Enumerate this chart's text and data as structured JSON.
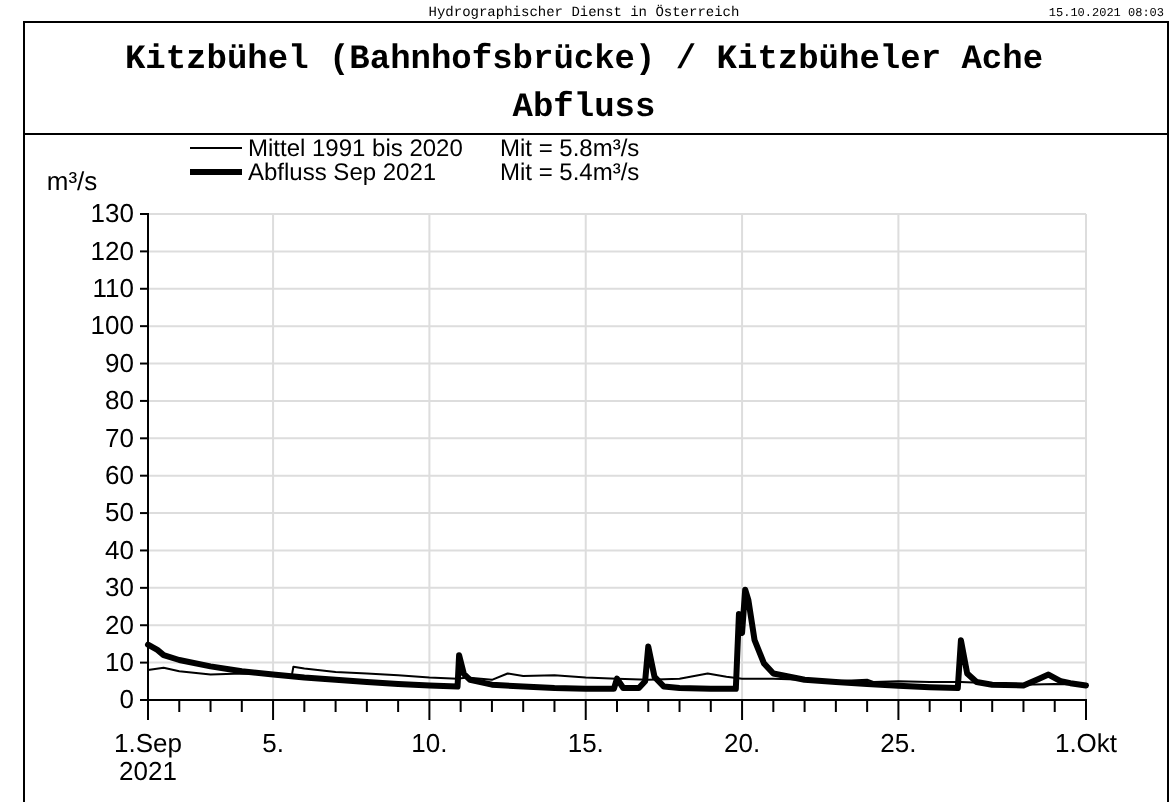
{
  "chart_data": {
    "type": "line",
    "title": "Kitzbühel (Bahnhofsbrücke) / Kitzbüheler Ache",
    "subtitle": "Abfluss",
    "ylabel": "m³/s",
    "annotations": [
      "Hydrographischer Dienst in Österreich",
      "15.10.2021 08:03",
      "Mit =  5.8m³/s",
      "Mit =  5.4m³/s"
    ],
    "xlim": [
      "2021-09-01",
      "2021-10-01"
    ],
    "ylim": [
      0,
      130
    ],
    "xticks": [
      {
        "value": "2021-09-01",
        "label": "1.Sep\n2021"
      },
      {
        "value": "2021-09-02",
        "label": null
      },
      {
        "value": "2021-09-03",
        "label": null
      },
      {
        "value": "2021-09-04",
        "label": null
      },
      {
        "value": "2021-09-05",
        "label": "5."
      },
      {
        "value": "2021-09-06",
        "label": null
      },
      {
        "value": "2021-09-07",
        "label": null
      },
      {
        "value": "2021-09-08",
        "label": null
      },
      {
        "value": "2021-09-09",
        "label": null
      },
      {
        "value": "2021-09-10",
        "label": "10."
      },
      {
        "value": "2021-09-11",
        "label": null
      },
      {
        "value": "2021-09-12",
        "label": null
      },
      {
        "value": "2021-09-13",
        "label": null
      },
      {
        "value": "2021-09-14",
        "label": null
      },
      {
        "value": "2021-09-15",
        "label": "15."
      },
      {
        "value": "2021-09-16",
        "label": null
      },
      {
        "value": "2021-09-17",
        "label": null
      },
      {
        "value": "2021-09-18",
        "label": null
      },
      {
        "value": "2021-09-19",
        "label": null
      },
      {
        "value": "2021-09-20",
        "label": "20."
      },
      {
        "value": "2021-09-21",
        "label": null
      },
      {
        "value": "2021-09-22",
        "label": null
      },
      {
        "value": "2021-09-23",
        "label": null
      },
      {
        "value": "2021-09-24",
        "label": null
      },
      {
        "value": "2021-09-25",
        "label": "25."
      },
      {
        "value": "2021-09-26",
        "label": null
      },
      {
        "value": "2021-09-27",
        "label": null
      },
      {
        "value": "2021-09-28",
        "label": null
      },
      {
        "value": "2021-09-29",
        "label": null
      },
      {
        "value": "2021-09-30",
        "label": null
      },
      {
        "value": "2021-10-01",
        "label": "1.Okt"
      }
    ],
    "yticks": [
      0,
      10,
      20,
      30,
      40,
      50,
      60,
      70,
      80,
      90,
      100,
      110,
      120,
      130
    ],
    "grid": true,
    "legend": "top left",
    "marker": "none",
    "line_style": "solid",
    "series": [
      {
        "name": "Mittel 1991 bis 2020",
        "color": "#000000",
        "x": [
          "2021-09-01",
          "2021-09-01T12:00",
          "2021-09-02",
          "2021-09-03",
          "2021-09-04",
          "2021-09-05",
          "2021-09-05T14:24",
          "2021-09-05T15:36",
          "2021-09-06",
          "2021-09-07",
          "2021-09-08",
          "2021-09-09",
          "2021-09-10",
          "2021-09-10T21:36",
          "2021-09-11T04:48",
          "2021-09-12",
          "2021-09-12T12:00",
          "2021-09-13",
          "2021-09-14",
          "2021-09-15",
          "2021-09-16",
          "2021-09-17",
          "2021-09-18",
          "2021-09-18T21:36",
          "2021-09-19T12:00",
          "2021-09-20",
          "2021-09-21",
          "2021-09-22",
          "2021-09-23",
          "2021-09-24",
          "2021-09-24T04:48",
          "2021-09-25",
          "2021-09-26",
          "2021-09-27",
          "2021-09-28",
          "2021-09-29",
          "2021-09-30",
          "2021-10-01"
        ],
        "values": [
          8,
          8.6,
          7.7,
          6.8,
          7.1,
          6.8,
          6.6,
          8.9,
          8.4,
          7.5,
          7.1,
          6.6,
          6,
          5.7,
          6,
          5.4,
          7.1,
          6.4,
          6.6,
          6,
          5.7,
          5.4,
          5.7,
          7.1,
          6.2,
          5.7,
          5.7,
          5.4,
          5,
          5.4,
          4.8,
          5,
          4.8,
          4.8,
          4.5,
          4.1,
          4.3,
          4.1
        ]
      },
      {
        "name": "Abfluss Sep 2021",
        "color": "#000000",
        "x": [
          "2021-09-01",
          "2021-09-01T07:12",
          "2021-09-01T12:00",
          "2021-09-02",
          "2021-09-03",
          "2021-09-04",
          "2021-09-05",
          "2021-09-06",
          "2021-09-07",
          "2021-09-08",
          "2021-09-09",
          "2021-09-10",
          "2021-09-10T21:36",
          "2021-09-10T22:48",
          "2021-09-11T02:24",
          "2021-09-11T07:12",
          "2021-09-12",
          "2021-09-13",
          "2021-09-14",
          "2021-09-15",
          "2021-09-15T21:36",
          "2021-09-16",
          "2021-09-16T04:48",
          "2021-09-16T16:48",
          "2021-09-16T21:36",
          "2021-09-17",
          "2021-09-17T04:48",
          "2021-09-17T12:00",
          "2021-09-18",
          "2021-09-19",
          "2021-09-19T19:12",
          "2021-09-19T21:36",
          "2021-09-20",
          "2021-09-20T02:24",
          "2021-09-20T04:48",
          "2021-09-20T09:36",
          "2021-09-20T16:48",
          "2021-09-21",
          "2021-09-22",
          "2021-09-23",
          "2021-09-24",
          "2021-09-25",
          "2021-09-26",
          "2021-09-26T21:36",
          "2021-09-27",
          "2021-09-27T04:48",
          "2021-09-27T12:00",
          "2021-09-28",
          "2021-09-29",
          "2021-09-29T12:00",
          "2021-09-29T19:12",
          "2021-09-30T04:48",
          "2021-09-30T12:00",
          "2021-10-01"
        ],
        "values": [
          14.8,
          13.4,
          12,
          10.7,
          9,
          7.7,
          6.8,
          6,
          5.4,
          4.8,
          4.3,
          3.9,
          3.6,
          12,
          7,
          5.4,
          4.1,
          3.6,
          3.2,
          3,
          3,
          5.7,
          3.2,
          3.2,
          5,
          14.3,
          6.2,
          3.6,
          3.2,
          3,
          3,
          23,
          17.9,
          29.5,
          26.8,
          16,
          9.8,
          7.1,
          5.4,
          4.8,
          4.3,
          3.8,
          3.4,
          3.2,
          16,
          7.1,
          4.8,
          4.1,
          3.9,
          5.7,
          6.8,
          5,
          4.5,
          3.9
        ]
      }
    ]
  }
}
